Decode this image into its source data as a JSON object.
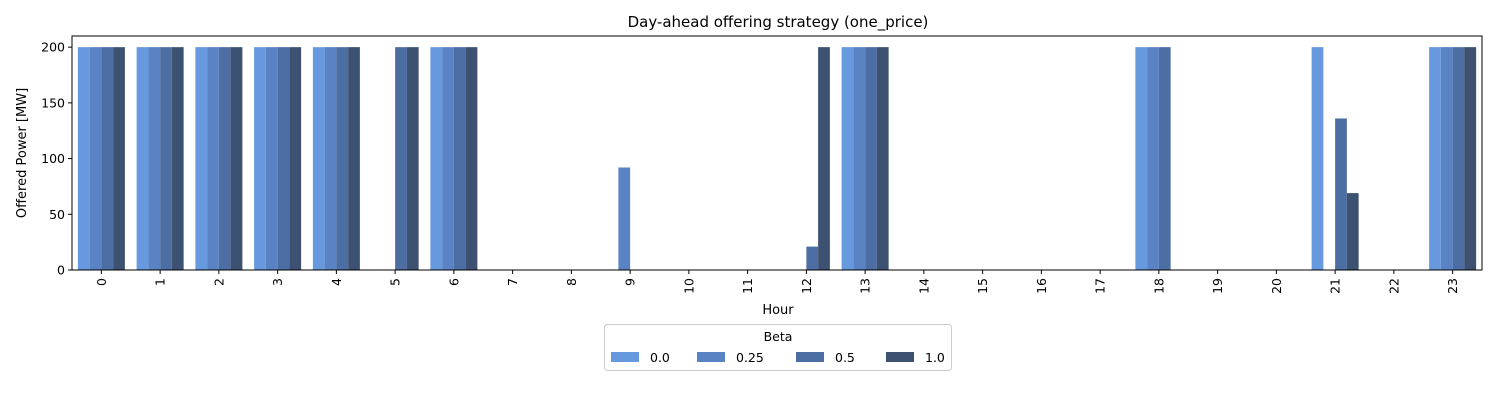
{
  "chart_data": {
    "type": "bar",
    "title": "Day-ahead offering strategy (one_price)",
    "xlabel": "Hour",
    "ylabel": "Offered Power [MW]",
    "ylim": [
      0,
      210
    ],
    "yticks": [
      0,
      50,
      100,
      150,
      200
    ],
    "grid": false,
    "legend_title": "Beta",
    "legend_position": "bottom-center, outside plot",
    "categories": [
      "0",
      "1",
      "2",
      "3",
      "4",
      "5",
      "6",
      "7",
      "8",
      "9",
      "10",
      "11",
      "12",
      "13",
      "14",
      "15",
      "16",
      "17",
      "18",
      "19",
      "20",
      "21",
      "22",
      "23"
    ],
    "series": [
      {
        "name": "0.0",
        "color": "#6699dd",
        "values": [
          200,
          200,
          200,
          200,
          200,
          0,
          200,
          0,
          0,
          0,
          0,
          0,
          0,
          200,
          0,
          0,
          0,
          0,
          200,
          0,
          0,
          200,
          0,
          200
        ]
      },
      {
        "name": "0.25",
        "color": "#5a83c4",
        "values": [
          200,
          200,
          200,
          200,
          200,
          0,
          200,
          0,
          0,
          92,
          0,
          0,
          0,
          200,
          0,
          0,
          0,
          0,
          200,
          0,
          0,
          0,
          0,
          200
        ]
      },
      {
        "name": "0.5",
        "color": "#4d6ea3",
        "values": [
          200,
          200,
          200,
          200,
          200,
          200,
          200,
          0,
          0,
          0,
          0,
          0,
          21,
          200,
          0,
          0,
          0,
          0,
          200,
          0,
          0,
          136,
          0,
          200
        ]
      },
      {
        "name": "1.0",
        "color": "#3d5170",
        "values": [
          200,
          200,
          200,
          200,
          200,
          200,
          200,
          0,
          0,
          0,
          0,
          0,
          200,
          200,
          0,
          0,
          0,
          0,
          0,
          0,
          0,
          69,
          0,
          200
        ]
      }
    ]
  }
}
